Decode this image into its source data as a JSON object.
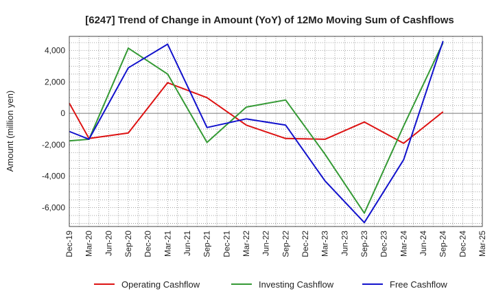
{
  "chart_data": {
    "type": "line",
    "title": "[6247]  Trend of Change in Amount (YoY) of 12Mo Moving Sum of Cashflows",
    "xlabel": "",
    "ylabel": "Amount (million yen)",
    "ylim": [
      -7200,
      4900
    ],
    "yticks": [
      4000,
      2000,
      0,
      -2000,
      -4000,
      -6000
    ],
    "ytick_labels": [
      "4,000",
      "2,000",
      "0",
      "-2,000",
      "-4,000",
      "-6,000"
    ],
    "categories": [
      "Dec-19",
      "Mar-20",
      "Jun-20",
      "Sep-20",
      "Dec-20",
      "Mar-21",
      "Jun-21",
      "Sep-21",
      "Dec-21",
      "Mar-22",
      "Jun-22",
      "Sep-22",
      "Dec-22",
      "Mar-23",
      "Jun-23",
      "Sep-23",
      "Dec-23",
      "Mar-24",
      "Jun-24",
      "Sep-24",
      "Dec-24",
      "Mar-25"
    ],
    "grid": true,
    "legend_position": "bottom",
    "series": [
      {
        "name": "Operating Cashflow",
        "color": "#dd1111",
        "values": [
          650,
          -1600,
          null,
          -1250,
          null,
          1950,
          null,
          1000,
          null,
          -750,
          null,
          -1600,
          null,
          -1650,
          null,
          -550,
          null,
          -1900,
          null,
          100,
          null,
          null
        ]
      },
      {
        "name": "Investing Cashflow",
        "color": "#339933",
        "values": [
          -1750,
          -1650,
          null,
          4150,
          null,
          2500,
          null,
          -1850,
          null,
          400,
          null,
          850,
          null,
          -2600,
          null,
          -6350,
          null,
          -800,
          null,
          4500,
          null,
          null
        ]
      },
      {
        "name": "Free Cashflow",
        "color": "#1111cc",
        "values": [
          -1150,
          -1650,
          null,
          2900,
          null,
          4400,
          null,
          -900,
          null,
          -350,
          null,
          -750,
          null,
          -4300,
          null,
          -6950,
          null,
          -2950,
          null,
          4600,
          null,
          null
        ]
      }
    ]
  }
}
